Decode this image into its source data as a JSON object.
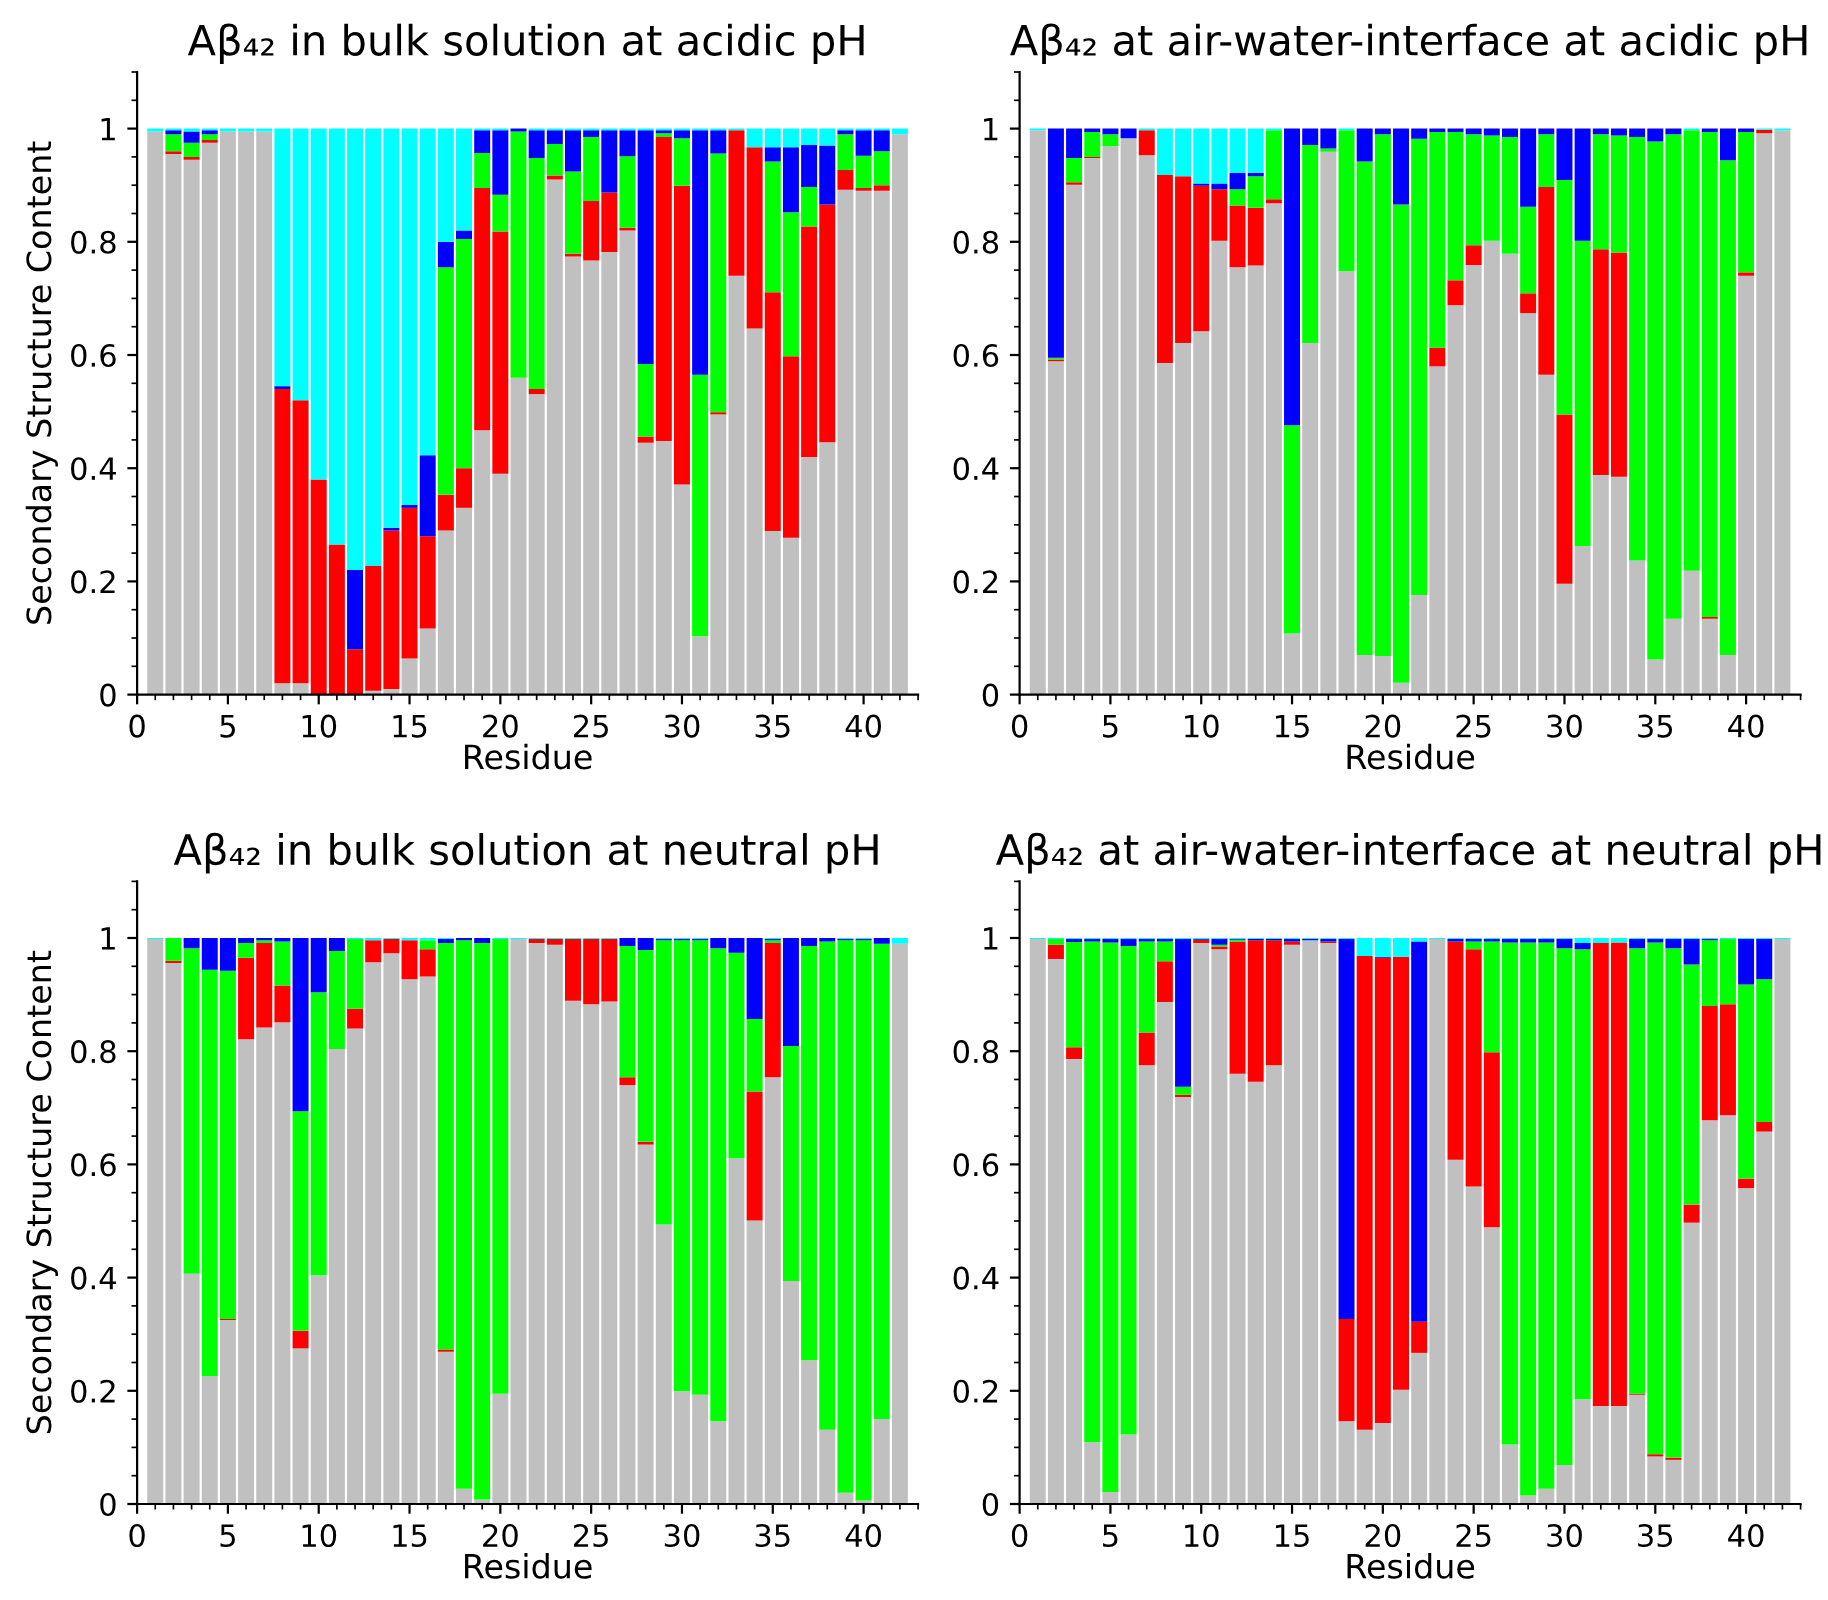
{
  "chart_data": [
    {
      "type": "bar",
      "stacked": true,
      "title": "Aβ₄₂ in bulk solution at acidic pH",
      "xlabel": "Residue",
      "ylabel": "Secondary Structure Content",
      "x": [
        1,
        2,
        3,
        4,
        5,
        6,
        7,
        8,
        9,
        10,
        11,
        12,
        13,
        14,
        15,
        16,
        17,
        18,
        19,
        20,
        21,
        22,
        23,
        24,
        25,
        26,
        27,
        28,
        29,
        30,
        31,
        32,
        33,
        34,
        35,
        36,
        37,
        38,
        39,
        40,
        41,
        42
      ],
      "xlim": [
        0,
        43
      ],
      "xticks": [
        0,
        5,
        10,
        15,
        20,
        25,
        30,
        35,
        40
      ],
      "ylim": [
        0,
        1.1
      ],
      "yticks": [
        0,
        0.2,
        0.4,
        0.6,
        0.8,
        1
      ],
      "series": [
        {
          "color": "#c0c0c0",
          "values": [
            0.995,
            0.955,
            0.945,
            0.975,
            0.995,
            0.995,
            0.995,
            0.02,
            0.02,
            0,
            0,
            0,
            0.007,
            0.01,
            0.064,
            0.117,
            0.29,
            0.33,
            0.467,
            0.39,
            0.56,
            0.531,
            0.91,
            0.774,
            0.767,
            0.782,
            0.82,
            0.445,
            0.448,
            0.371,
            0.103,
            0.495,
            0.74,
            0.647,
            0.289,
            0.277,
            0.42,
            0.446,
            0.892,
            0.89,
            0.89,
            0.99
          ]
        },
        {
          "color": "#ff0000",
          "values": [
            0,
            0.005,
            0.005,
            0.005,
            0,
            0,
            0,
            0.52,
            0.5,
            0.38,
            0.265,
            0.08,
            0.22,
            0.28,
            0.266,
            0.163,
            0.063,
            0.07,
            0.428,
            0.428,
            0,
            0.009,
            0.007,
            0.005,
            0.105,
            0.105,
            0.005,
            0.011,
            0.537,
            0.528,
            0,
            0.004,
            0.257,
            0.32,
            0.422,
            0.321,
            0.407,
            0.42,
            0.035,
            0.005,
            0.01,
            0
          ]
        },
        {
          "color": "#00ff00",
          "values": [
            0,
            0.03,
            0.025,
            0.01,
            0,
            0,
            0,
            0,
            0,
            0,
            0,
            0,
            0,
            0,
            0,
            0,
            0.402,
            0.405,
            0.062,
            0.065,
            0.435,
            0.408,
            0.056,
            0.145,
            0.113,
            0,
            0.126,
            0.128,
            0.007,
            0.084,
            0.462,
            0.457,
            0,
            0,
            0.231,
            0.254,
            0.07,
            0,
            0.063,
            0.057,
            0.06,
            0
          ]
        },
        {
          "color": "#0000ff",
          "values": [
            0,
            0.007,
            0.02,
            0.007,
            0,
            0,
            0,
            0.005,
            0,
            0,
            0,
            0.14,
            0,
            0.005,
            0.005,
            0.143,
            0.045,
            0.015,
            0.04,
            0.114,
            0.005,
            0.049,
            0.024,
            0.073,
            0.012,
            0.11,
            0.046,
            0.413,
            0.005,
            0.014,
            0.432,
            0.041,
            0,
            0,
            0.025,
            0.115,
            0.074,
            0.104,
            0.007,
            0.045,
            0.037,
            0
          ]
        },
        {
          "color": "#00ffff",
          "values": [
            0.005,
            0.003,
            0.005,
            0.003,
            0.005,
            0.005,
            0.005,
            0.455,
            0.48,
            0.62,
            0.735,
            0.78,
            0.773,
            0.705,
            0.665,
            0.577,
            0.2,
            0.18,
            0.003,
            0.003,
            0,
            0.003,
            0.003,
            0.003,
            0.003,
            0.003,
            0.003,
            0.003,
            0.003,
            0.003,
            0.003,
            0.003,
            0.003,
            0.033,
            0.033,
            0.033,
            0.029,
            0.03,
            0.003,
            0.003,
            0.003,
            0.01
          ]
        }
      ]
    },
    {
      "type": "bar",
      "stacked": true,
      "title": "Aβ₄₂ at air-water-interface at acidic pH",
      "xlabel": "Residue",
      "x": [
        1,
        2,
        3,
        4,
        5,
        6,
        7,
        8,
        9,
        10,
        11,
        12,
        13,
        14,
        15,
        16,
        17,
        18,
        19,
        20,
        21,
        22,
        23,
        24,
        25,
        26,
        27,
        28,
        29,
        30,
        31,
        32,
        33,
        34,
        35,
        36,
        37,
        38,
        39,
        40,
        41,
        42
      ],
      "xlim": [
        0,
        43
      ],
      "xticks": [
        0,
        5,
        10,
        15,
        20,
        25,
        30,
        35,
        40
      ],
      "ylim": [
        0,
        1.1
      ],
      "yticks": [
        0,
        0.2,
        0.4,
        0.6,
        0.8,
        1
      ],
      "series": [
        {
          "color": "#c0c0c0",
          "values": [
            0.997,
            0.589,
            0.901,
            0.948,
            0.969,
            0.983,
            0.953,
            0.586,
            0.621,
            0.642,
            0.802,
            0.755,
            0.758,
            0.868,
            0.108,
            0.621,
            0.959,
            0.748,
            0.07,
            0.068,
            0.021,
            0.176,
            0.58,
            0.688,
            0.759,
            0.802,
            0.779,
            0.674,
            0.565,
            0.196,
            0.262,
            0.388,
            0.385,
            0.237,
            0.062,
            0.134,
            0.219,
            0.134,
            0.07,
            0.74,
            0.992,
            0.997
          ]
        },
        {
          "color": "#ff0000",
          "values": [
            0,
            0.003,
            0.004,
            0.002,
            0,
            0,
            0.044,
            0.332,
            0.295,
            0.257,
            0.091,
            0.109,
            0.102,
            0.007,
            0,
            0,
            0,
            0,
            0,
            0,
            0,
            0,
            0.033,
            0.044,
            0.035,
            0,
            0,
            0.035,
            0.332,
            0.299,
            0,
            0.399,
            0.396,
            0,
            0,
            0,
            0,
            0.003,
            0,
            0.006,
            0.006,
            0
          ]
        },
        {
          "color": "#00ff00",
          "values": [
            0,
            0.003,
            0.043,
            0.044,
            0.021,
            0,
            0,
            0,
            0,
            0,
            0,
            0.029,
            0.056,
            0.122,
            0.368,
            0.35,
            0.006,
            0.249,
            0.872,
            0.922,
            0.845,
            0.806,
            0.381,
            0.262,
            0.196,
            0.186,
            0.206,
            0.153,
            0.093,
            0.414,
            0.54,
            0.203,
            0.207,
            0.748,
            0.915,
            0.856,
            0.778,
            0.857,
            0.874,
            0.248,
            0,
            0
          ]
        },
        {
          "color": "#0000ff",
          "values": [
            0,
            0.405,
            0.052,
            0.006,
            0.01,
            0.017,
            0,
            0,
            0,
            0.004,
            0.01,
            0.029,
            0.006,
            0,
            0.524,
            0.029,
            0.035,
            0,
            0.058,
            0.01,
            0.134,
            0.018,
            0.006,
            0.006,
            0.01,
            0.012,
            0.015,
            0.138,
            0.01,
            0.091,
            0.198,
            0.01,
            0.012,
            0.015,
            0.023,
            0.01,
            0,
            0.006,
            0.056,
            0.006,
            0,
            0
          ]
        },
        {
          "color": "#00ffff",
          "values": [
            0.003,
            0,
            0,
            0,
            0,
            0,
            0.003,
            0.082,
            0.084,
            0.097,
            0.097,
            0.078,
            0.078,
            0.003,
            0,
            0,
            0,
            0.003,
            0,
            0,
            0,
            0,
            0,
            0,
            0,
            0,
            0,
            0,
            0,
            0,
            0,
            0,
            0,
            0,
            0,
            0,
            0.003,
            0,
            0,
            0,
            0.002,
            0.003
          ]
        }
      ]
    },
    {
      "type": "bar",
      "stacked": true,
      "title": "Aβ₄₂ in bulk solution at neutral pH",
      "xlabel": "Residue",
      "ylabel": "Secondary Structure Content",
      "x": [
        1,
        2,
        3,
        4,
        5,
        6,
        7,
        8,
        9,
        10,
        11,
        12,
        13,
        14,
        15,
        16,
        17,
        18,
        19,
        20,
        21,
        22,
        23,
        24,
        25,
        26,
        27,
        28,
        29,
        30,
        31,
        32,
        33,
        34,
        35,
        36,
        37,
        38,
        39,
        40,
        41,
        42
      ],
      "xlim": [
        0,
        43
      ],
      "xticks": [
        0,
        5,
        10,
        15,
        20,
        25,
        30,
        35,
        40
      ],
      "ylim": [
        0,
        1.1
      ],
      "yticks": [
        0,
        0.2,
        0.4,
        0.6,
        0.8,
        1
      ],
      "series": [
        {
          "color": "#c0c0c0",
          "values": [
            0.998,
            0.956,
            0.407,
            0.226,
            0.325,
            0.821,
            0.842,
            0.851,
            0.275,
            0.404,
            0.804,
            0.84,
            0.957,
            0.973,
            0.927,
            0.932,
            0.269,
            0.027,
            0.008,
            0.195,
            0.998,
            0.991,
            0.988,
            0.889,
            0.883,
            0.888,
            0.74,
            0.635,
            0.494,
            0.199,
            0.193,
            0.146,
            0.611,
            0.501,
            0.754,
            0.394,
            0.254,
            0.131,
            0.02,
            0.006,
            0.15,
            0.99
          ]
        },
        {
          "color": "#ff0000",
          "values": [
            0,
            0.004,
            0,
            0,
            0.002,
            0.144,
            0.149,
            0.065,
            0.031,
            0,
            0,
            0.035,
            0.039,
            0.025,
            0.069,
            0.048,
            0.004,
            0,
            0,
            0,
            0,
            0.007,
            0.01,
            0.109,
            0.115,
            0.11,
            0.014,
            0.005,
            0,
            0,
            0,
            0,
            0,
            0.228,
            0.237,
            0,
            0,
            0,
            0,
            0,
            0,
            0
          ]
        },
        {
          "color": "#00ff00",
          "values": [
            0,
            0.04,
            0.575,
            0.718,
            0.615,
            0.026,
            0.005,
            0.078,
            0.388,
            0.5,
            0.173,
            0.123,
            0,
            0,
            0,
            0.016,
            0.718,
            0.969,
            0.983,
            0.803,
            0,
            0,
            0,
            0,
            0,
            0,
            0.232,
            0.339,
            0.502,
            0.797,
            0.803,
            0.836,
            0.363,
            0.128,
            0.005,
            0.415,
            0.732,
            0.863,
            0.976,
            0.99,
            0.84,
            0
          ]
        },
        {
          "color": "#0000ff",
          "values": [
            0,
            0,
            0.018,
            0.056,
            0.058,
            0.009,
            0.004,
            0.006,
            0.306,
            0.096,
            0.023,
            0,
            0,
            0,
            0,
            0,
            0.007,
            0.004,
            0.009,
            0,
            0,
            0,
            0,
            0,
            0,
            0,
            0.014,
            0.021,
            0.002,
            0.002,
            0.002,
            0.018,
            0.026,
            0.143,
            0.002,
            0.191,
            0.014,
            0.006,
            0.002,
            0.002,
            0.01,
            0
          ]
        },
        {
          "color": "#00ffff",
          "values": [
            0.002,
            0,
            0,
            0,
            0,
            0,
            0,
            0,
            0,
            0,
            0,
            0.002,
            0.004,
            0.002,
            0.004,
            0.004,
            0.002,
            0,
            0,
            0.002,
            0.002,
            0.002,
            0.002,
            0.002,
            0.002,
            0.002,
            0,
            0,
            0.002,
            0.002,
            0.002,
            0,
            0,
            0,
            0.002,
            0,
            0,
            0,
            0.002,
            0.002,
            0,
            0.01
          ]
        }
      ]
    },
    {
      "type": "bar",
      "stacked": true,
      "title": "Aβ₄₂ at air-water-interface at neutral pH",
      "xlabel": "Residue",
      "x": [
        1,
        2,
        3,
        4,
        5,
        6,
        7,
        8,
        9,
        10,
        11,
        12,
        13,
        14,
        15,
        16,
        17,
        18,
        19,
        20,
        21,
        22,
        23,
        24,
        25,
        26,
        27,
        28,
        29,
        30,
        31,
        32,
        33,
        34,
        35,
        36,
        37,
        38,
        39,
        40,
        41,
        42
      ],
      "xlim": [
        0,
        43
      ],
      "xticks": [
        0,
        5,
        10,
        15,
        20,
        25,
        30,
        35,
        40
      ],
      "ylim": [
        0,
        1.1
      ],
      "yticks": [
        0,
        0.2,
        0.4,
        0.6,
        0.8,
        1
      ],
      "series": [
        {
          "color": "#c0c0c0",
          "values": [
            0.998,
            0.963,
            0.786,
            0.109,
            0.021,
            0.123,
            0.775,
            0.887,
            0.719,
            0.991,
            0.98,
            0.76,
            0.746,
            0.775,
            0.988,
            0.996,
            0.991,
            0.146,
            0.131,
            0.143,
            0.202,
            0.267,
            0.998,
            0.608,
            0.561,
            0.489,
            0.105,
            0.015,
            0.027,
            0.069,
            0.185,
            0.173,
            0.173,
            0.193,
            0.084,
            0.078,
            0.497,
            0.678,
            0.687,
            0.558,
            0.658,
            0.998
          ]
        },
        {
          "color": "#ff0000",
          "values": [
            0,
            0.025,
            0.021,
            0,
            0,
            0,
            0.058,
            0.072,
            0.004,
            0.006,
            0.005,
            0.234,
            0.25,
            0.221,
            0.006,
            0,
            0.003,
            0.181,
            0.837,
            0.822,
            0.765,
            0.055,
            0,
            0.386,
            0.419,
            0.309,
            0,
            0,
            0,
            0,
            0,
            0.818,
            0.819,
            0.002,
            0.004,
            0.004,
            0.032,
            0.202,
            0.196,
            0.017,
            0.017,
            0
          ]
        },
        {
          "color": "#00ff00",
          "values": [
            0,
            0.01,
            0.186,
            0.885,
            0.971,
            0.863,
            0.161,
            0.035,
            0.014,
            0,
            0.003,
            0.003,
            0,
            0,
            0,
            0,
            0,
            0,
            0,
            0,
            0,
            0,
            0,
            0,
            0.014,
            0.196,
            0.887,
            0.977,
            0.965,
            0.913,
            0.795,
            0,
            0,
            0.787,
            0.904,
            0.9,
            0.424,
            0.116,
            0.115,
            0.343,
            0.252,
            0
          ]
        },
        {
          "color": "#0000ff",
          "values": [
            0,
            0,
            0.005,
            0.004,
            0.006,
            0.012,
            0.004,
            0.004,
            0.261,
            0.001,
            0.01,
            0.001,
            0.002,
            0.002,
            0.004,
            0.002,
            0.004,
            0.671,
            0,
            0.002,
            0,
            0.672,
            0,
            0.004,
            0.004,
            0.004,
            0.006,
            0.006,
            0.006,
            0.016,
            0.011,
            0,
            0,
            0.016,
            0.006,
            0.016,
            0.045,
            0.002,
            0,
            0.08,
            0.071,
            0
          ]
        },
        {
          "color": "#00ffff",
          "values": [
            0.002,
            0.002,
            0.002,
            0.002,
            0.002,
            0.002,
            0.002,
            0.002,
            0.002,
            0.002,
            0.002,
            0.002,
            0.002,
            0.002,
            0.002,
            0.002,
            0.002,
            0.002,
            0.032,
            0.033,
            0.033,
            0.006,
            0.002,
            0.002,
            0.002,
            0.002,
            0.002,
            0.002,
            0.002,
            0.002,
            0.009,
            0.009,
            0.008,
            0.002,
            0.002,
            0.002,
            0.002,
            0.002,
            0.002,
            0.002,
            0.002,
            0.002
          ]
        }
      ]
    }
  ]
}
